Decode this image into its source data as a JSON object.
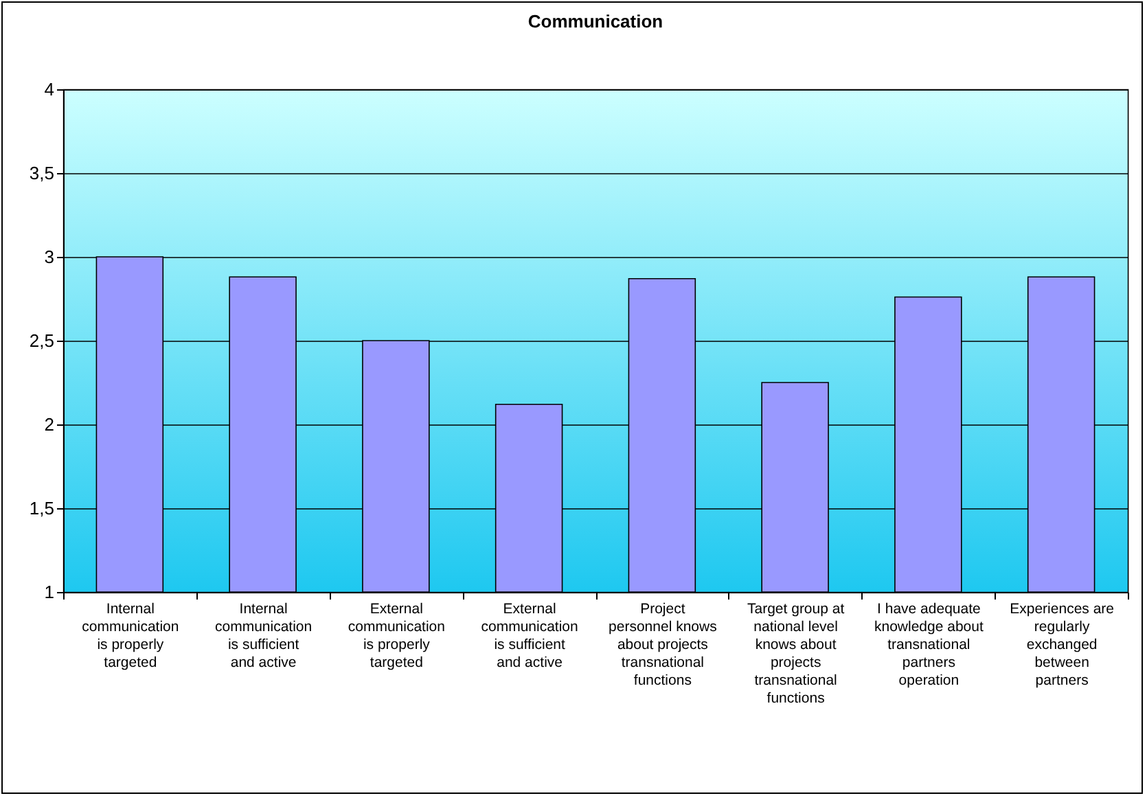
{
  "chart_data": {
    "type": "bar",
    "title": "Communication",
    "categories": [
      "Internal communication is properly targeted",
      "Internal communication is sufficient and active",
      "External communication is properly targeted",
      "External communication is sufficient and active",
      "Project personnel knows about projects transnational functions",
      "Target group at national level knows about projects transnational functions",
      "I have adequate knowledge about transnational partners operation",
      "Experiences are regularly exchanged between partners"
    ],
    "values": [
      3.0,
      2.88,
      2.5,
      2.12,
      2.87,
      2.25,
      2.76,
      2.88
    ],
    "color": "#9999ff",
    "ylim": [
      1,
      4
    ],
    "yticks": [
      {
        "value": 1,
        "label": "1"
      },
      {
        "value": 1.5,
        "label": "1,5"
      },
      {
        "value": 2,
        "label": "2"
      },
      {
        "value": 2.5,
        "label": "2,5"
      },
      {
        "value": 3,
        "label": "3"
      },
      {
        "value": 3.5,
        "label": "3,5"
      },
      {
        "value": 4,
        "label": "4"
      }
    ],
    "grid": "y"
  }
}
